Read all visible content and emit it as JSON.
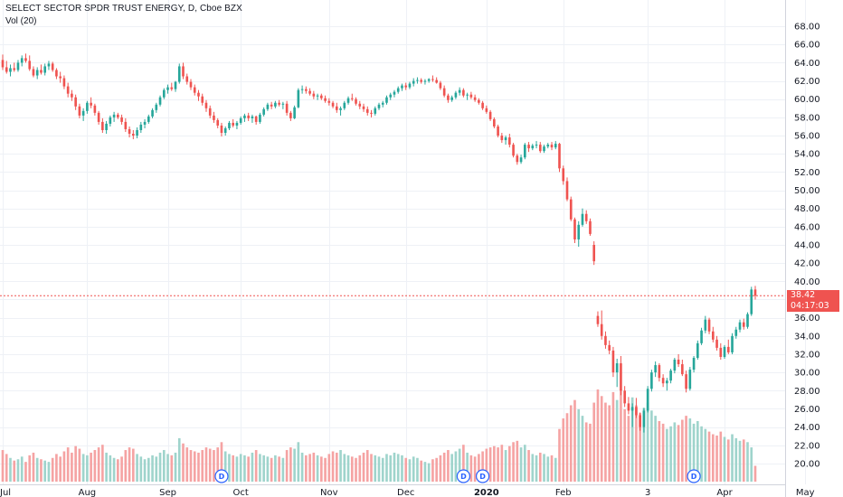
{
  "header": {
    "title": "SELECT SECTOR SPDR TRUST ENERGY, D, Cboe BZX",
    "volume_label": "Vol (20)"
  },
  "price_tag": {
    "last_price": "38.42",
    "countdown": "04:17:03",
    "color": "#ef5350"
  },
  "colors": {
    "up": "#26a69a",
    "down": "#ef5350",
    "up_volume": "#9fd4cc",
    "down_volume": "#f5a3a3",
    "grid": "#eef1f6",
    "axis_text": "#131722",
    "dividend_marker": "#2962ff"
  },
  "chart_data": {
    "type": "candlestick",
    "yaxis": {
      "min": 19.0,
      "max": 69.0,
      "ticks": [
        "68.00",
        "66.00",
        "64.00",
        "62.00",
        "60.00",
        "58.00",
        "56.00",
        "54.00",
        "52.00",
        "50.00",
        "48.00",
        "46.00",
        "44.00",
        "42.00",
        "40.00",
        "38.00",
        "36.00",
        "34.00",
        "32.00",
        "30.00",
        "28.00",
        "26.00",
        "24.00",
        "22.00",
        "20.00"
      ]
    },
    "xaxis": {
      "labels": [
        {
          "text": "Jul",
          "index": 0
        },
        {
          "text": "Aug",
          "index": 22
        },
        {
          "text": "Sep",
          "index": 43
        },
        {
          "text": "Oct",
          "index": 62
        },
        {
          "text": "Nov",
          "index": 85
        },
        {
          "text": "Dec",
          "index": 105
        },
        {
          "text": "2020",
          "index": 126,
          "bold": true
        },
        {
          "text": "Feb",
          "index": 146
        },
        {
          "text": "3",
          "index": 168
        },
        {
          "text": "Apr",
          "index": 188
        },
        {
          "text": "May",
          "index": 209
        }
      ]
    },
    "dividend_markers": [
      {
        "label": "D",
        "index": 57
      },
      {
        "label": "D",
        "index": 120
      },
      {
        "label": "D",
        "index": 125
      },
      {
        "label": "D",
        "index": 180
      }
    ],
    "last_price": 38.42,
    "ohlcv": [
      [
        64.3,
        64.9,
        63.2,
        63.5,
        24
      ],
      [
        63.5,
        64.2,
        62.8,
        63.0,
        21
      ],
      [
        63.0,
        63.8,
        62.5,
        63.4,
        18
      ],
      [
        63.4,
        64.0,
        63.0,
        63.2,
        16
      ],
      [
        63.2,
        64.3,
        63.0,
        64.0,
        17
      ],
      [
        64.0,
        64.8,
        63.6,
        64.5,
        19
      ],
      [
        64.5,
        65.0,
        64.0,
        64.2,
        15
      ],
      [
        64.2,
        64.8,
        63.1,
        63.3,
        20
      ],
      [
        63.3,
        63.6,
        62.4,
        62.6,
        22
      ],
      [
        62.6,
        63.5,
        62.2,
        63.2,
        18
      ],
      [
        63.2,
        63.8,
        62.7,
        62.9,
        17
      ],
      [
        62.9,
        63.9,
        62.6,
        63.6,
        16
      ],
      [
        63.6,
        64.2,
        63.2,
        63.9,
        15
      ],
      [
        63.9,
        64.1,
        63.0,
        63.2,
        18
      ],
      [
        63.2,
        63.4,
        62.2,
        62.5,
        21
      ],
      [
        62.5,
        63.0,
        61.8,
        62.3,
        19
      ],
      [
        62.3,
        62.6,
        61.1,
        61.4,
        23
      ],
      [
        61.4,
        61.8,
        60.2,
        60.6,
        26
      ],
      [
        60.6,
        61.0,
        59.8,
        60.2,
        22
      ],
      [
        60.2,
        60.5,
        58.8,
        59.2,
        27
      ],
      [
        59.2,
        59.5,
        57.9,
        58.2,
        25
      ],
      [
        58.2,
        59.0,
        57.6,
        58.7,
        21
      ],
      [
        58.7,
        59.8,
        58.4,
        59.6,
        20
      ],
      [
        59.6,
        60.2,
        59.0,
        59.3,
        22
      ],
      [
        59.3,
        59.5,
        58.2,
        58.5,
        24
      ],
      [
        58.5,
        58.7,
        57.2,
        57.5,
        26
      ],
      [
        57.5,
        57.9,
        56.3,
        56.6,
        28
      ],
      [
        56.6,
        57.6,
        56.2,
        57.3,
        22
      ],
      [
        57.3,
        58.2,
        57.0,
        58.0,
        20
      ],
      [
        58.0,
        58.6,
        57.5,
        58.3,
        18
      ],
      [
        58.3,
        58.5,
        57.8,
        58.0,
        17
      ],
      [
        58.0,
        58.3,
        57.2,
        57.5,
        19
      ],
      [
        57.5,
        57.9,
        56.4,
        56.7,
        24
      ],
      [
        56.7,
        57.0,
        55.8,
        56.2,
        26
      ],
      [
        56.2,
        56.6,
        55.6,
        56.0,
        25
      ],
      [
        56.0,
        56.9,
        55.7,
        56.6,
        21
      ],
      [
        56.6,
        57.5,
        56.3,
        57.2,
        19
      ],
      [
        57.2,
        57.8,
        56.8,
        57.5,
        17
      ],
      [
        57.5,
        58.3,
        57.3,
        58.1,
        18
      ],
      [
        58.1,
        59.0,
        57.9,
        58.8,
        20
      ],
      [
        58.8,
        59.6,
        58.5,
        59.4,
        19
      ],
      [
        59.4,
        60.4,
        59.2,
        60.2,
        22
      ],
      [
        60.2,
        61.2,
        60.0,
        61.0,
        24
      ],
      [
        61.0,
        61.6,
        60.6,
        61.3,
        21
      ],
      [
        61.3,
        61.8,
        60.9,
        61.1,
        20
      ],
      [
        61.1,
        62.0,
        60.8,
        61.9,
        22
      ],
      [
        61.9,
        63.9,
        61.7,
        63.6,
        33
      ],
      [
        63.6,
        64.0,
        62.2,
        62.5,
        29
      ],
      [
        62.5,
        62.8,
        61.6,
        61.9,
        26
      ],
      [
        61.9,
        62.2,
        61.0,
        61.3,
        24
      ],
      [
        61.3,
        61.6,
        60.4,
        60.7,
        23
      ],
      [
        60.7,
        61.0,
        59.8,
        60.3,
        22
      ],
      [
        60.3,
        60.6,
        59.3,
        59.6,
        24
      ],
      [
        59.6,
        59.9,
        58.6,
        59.0,
        26
      ],
      [
        59.0,
        59.3,
        57.9,
        58.2,
        25
      ],
      [
        58.2,
        58.6,
        57.4,
        57.7,
        24
      ],
      [
        57.7,
        57.9,
        56.8,
        57.1,
        26
      ],
      [
        57.1,
        57.4,
        55.9,
        56.3,
        30
      ],
      [
        56.3,
        57.0,
        56.0,
        56.8,
        23
      ],
      [
        56.8,
        57.6,
        56.6,
        57.4,
        21
      ],
      [
        57.4,
        57.8,
        56.9,
        57.1,
        20
      ],
      [
        57.1,
        57.6,
        56.7,
        57.4,
        19
      ],
      [
        57.4,
        58.1,
        57.2,
        57.9,
        21
      ],
      [
        57.9,
        58.4,
        57.5,
        58.2,
        20
      ],
      [
        58.2,
        58.5,
        57.6,
        57.9,
        19
      ],
      [
        57.9,
        58.3,
        57.4,
        58.1,
        22
      ],
      [
        58.1,
        58.2,
        57.2,
        57.5,
        24
      ],
      [
        57.5,
        58.5,
        57.3,
        58.3,
        21
      ],
      [
        58.3,
        59.1,
        58.1,
        58.9,
        20
      ],
      [
        58.9,
        59.6,
        58.7,
        59.4,
        19
      ],
      [
        59.4,
        59.7,
        58.9,
        59.2,
        18
      ],
      [
        59.2,
        59.8,
        59.0,
        59.6,
        20
      ],
      [
        59.6,
        59.9,
        59.2,
        59.4,
        19
      ],
      [
        59.4,
        59.7,
        58.9,
        59.5,
        18
      ],
      [
        59.5,
        59.8,
        58.2,
        58.5,
        24
      ],
      [
        58.5,
        58.7,
        57.6,
        57.9,
        26
      ],
      [
        57.9,
        59.3,
        57.8,
        59.1,
        25
      ],
      [
        59.1,
        61.2,
        59.0,
        61.0,
        30
      ],
      [
        61.0,
        61.5,
        60.6,
        61.1,
        22
      ],
      [
        61.1,
        61.4,
        60.6,
        60.9,
        20
      ],
      [
        60.9,
        61.2,
        60.4,
        60.6,
        21
      ],
      [
        60.6,
        60.9,
        60.0,
        60.3,
        22
      ],
      [
        60.3,
        60.6,
        59.9,
        60.4,
        20
      ],
      [
        60.4,
        60.6,
        59.9,
        60.1,
        19
      ],
      [
        60.1,
        60.4,
        59.6,
        59.8,
        18
      ],
      [
        59.8,
        60.1,
        59.3,
        59.6,
        21
      ],
      [
        59.6,
        59.8,
        59.0,
        59.2,
        23
      ],
      [
        59.2,
        59.6,
        58.5,
        58.8,
        22
      ],
      [
        58.8,
        59.2,
        58.2,
        59.0,
        24
      ],
      [
        59.0,
        59.8,
        58.8,
        59.6,
        21
      ],
      [
        59.6,
        60.3,
        59.4,
        60.1,
        20
      ],
      [
        60.1,
        60.6,
        59.8,
        60.0,
        19
      ],
      [
        60.0,
        60.2,
        59.3,
        59.5,
        18
      ],
      [
        59.5,
        59.8,
        58.9,
        59.2,
        20
      ],
      [
        59.2,
        59.5,
        58.6,
        58.9,
        22
      ],
      [
        58.9,
        59.2,
        58.2,
        58.5,
        24
      ],
      [
        58.5,
        58.8,
        58.0,
        58.4,
        21
      ],
      [
        58.4,
        59.2,
        58.2,
        59.0,
        20
      ],
      [
        59.0,
        59.6,
        58.8,
        59.4,
        19
      ],
      [
        59.4,
        59.8,
        59.1,
        59.6,
        18
      ],
      [
        59.6,
        60.4,
        59.4,
        60.2,
        21
      ],
      [
        60.2,
        60.7,
        59.9,
        60.5,
        20
      ],
      [
        60.5,
        61.0,
        60.2,
        60.8,
        22
      ],
      [
        60.8,
        61.4,
        60.6,
        61.2,
        21
      ],
      [
        61.2,
        61.7,
        60.9,
        61.5,
        20
      ],
      [
        61.5,
        61.8,
        61.0,
        61.3,
        18
      ],
      [
        61.3,
        61.9,
        61.1,
        61.7,
        17
      ],
      [
        61.7,
        62.3,
        61.4,
        62.0,
        19
      ],
      [
        62.0,
        62.4,
        61.7,
        62.1,
        18
      ],
      [
        62.1,
        62.3,
        61.7,
        61.9,
        16
      ],
      [
        61.9,
        62.2,
        61.6,
        62.0,
        15
      ],
      [
        62.0,
        62.3,
        61.8,
        62.2,
        14
      ],
      [
        62.2,
        62.6,
        61.9,
        62.1,
        17
      ],
      [
        62.1,
        62.4,
        61.7,
        61.8,
        18
      ],
      [
        61.8,
        62.0,
        61.0,
        61.2,
        20
      ],
      [
        61.2,
        61.5,
        60.2,
        60.4,
        22
      ],
      [
        60.4,
        60.6,
        59.6,
        59.9,
        24
      ],
      [
        59.9,
        60.4,
        59.7,
        60.2,
        21
      ],
      [
        60.2,
        60.9,
        60.0,
        60.7,
        23
      ],
      [
        60.7,
        61.3,
        60.4,
        61.0,
        25
      ],
      [
        61.0,
        61.2,
        60.2,
        60.4,
        28
      ],
      [
        60.4,
        60.7,
        59.9,
        60.5,
        22
      ],
      [
        60.5,
        60.8,
        60.0,
        60.2,
        20
      ],
      [
        60.2,
        60.5,
        59.7,
        59.9,
        19
      ],
      [
        59.9,
        60.1,
        59.4,
        59.6,
        21
      ],
      [
        59.6,
        59.8,
        58.8,
        59.0,
        23
      ],
      [
        59.0,
        59.3,
        58.4,
        58.6,
        25
      ],
      [
        58.6,
        58.8,
        57.6,
        57.8,
        26
      ],
      [
        57.8,
        58.0,
        56.8,
        57.0,
        27
      ],
      [
        57.0,
        57.2,
        55.8,
        56.0,
        26
      ],
      [
        56.0,
        56.3,
        55.2,
        55.5,
        28
      ],
      [
        55.5,
        56.0,
        55.0,
        55.8,
        24
      ],
      [
        55.8,
        56.2,
        54.7,
        55.0,
        27
      ],
      [
        55.0,
        55.2,
        53.6,
        53.8,
        30
      ],
      [
        53.8,
        54.0,
        52.8,
        53.1,
        31
      ],
      [
        53.1,
        53.9,
        52.9,
        53.6,
        26
      ],
      [
        53.6,
        55.2,
        53.4,
        55.0,
        28
      ],
      [
        55.0,
        55.3,
        54.2,
        54.6,
        24
      ],
      [
        54.6,
        55.1,
        54.4,
        54.9,
        21
      ],
      [
        54.9,
        55.4,
        54.6,
        55.0,
        20
      ],
      [
        55.0,
        55.3,
        54.1,
        54.3,
        22
      ],
      [
        54.3,
        55.0,
        54.1,
        54.8,
        21
      ],
      [
        54.8,
        55.2,
        54.6,
        55.0,
        19
      ],
      [
        55.0,
        55.3,
        54.4,
        54.7,
        20
      ],
      [
        54.7,
        55.4,
        54.5,
        55.1,
        18
      ],
      [
        55.1,
        55.2,
        52.0,
        52.4,
        40
      ],
      [
        52.4,
        52.7,
        50.6,
        51.0,
        48
      ],
      [
        51.0,
        51.4,
        48.8,
        49.0,
        52
      ],
      [
        49.0,
        49.3,
        46.6,
        46.8,
        58
      ],
      [
        46.8,
        47.0,
        44.2,
        44.6,
        62
      ],
      [
        44.6,
        46.6,
        43.8,
        46.2,
        55
      ],
      [
        46.2,
        48.0,
        46.0,
        47.4,
        50
      ],
      [
        47.4,
        47.8,
        46.3,
        46.6,
        45
      ],
      [
        46.6,
        46.9,
        45.0,
        45.2,
        44
      ],
      [
        44.0,
        44.4,
        41.8,
        42.2,
        60
      ],
      [
        36.2,
        36.7,
        35.0,
        35.3,
        70
      ],
      [
        35.3,
        36.8,
        33.6,
        34.0,
        65
      ],
      [
        34.0,
        34.5,
        32.6,
        33.0,
        60
      ],
      [
        33.0,
        33.5,
        32.0,
        32.4,
        58
      ],
      [
        32.4,
        32.8,
        29.5,
        30.0,
        68
      ],
      [
        30.0,
        31.5,
        28.4,
        31.0,
        62
      ],
      [
        31.0,
        31.8,
        27.5,
        28.0,
        70
      ],
      [
        28.0,
        28.5,
        26.2,
        26.6,
        55
      ],
      [
        26.6,
        27.3,
        25.4,
        25.8,
        50
      ],
      [
        25.8,
        26.6,
        24.0,
        26.2,
        64
      ],
      [
        26.2,
        27.2,
        25.0,
        25.3,
        58
      ],
      [
        25.3,
        25.6,
        23.6,
        24.0,
        52
      ],
      [
        24.0,
        26.1,
        23.4,
        25.8,
        56
      ],
      [
        25.8,
        28.5,
        25.6,
        28.2,
        60
      ],
      [
        28.2,
        30.3,
        27.9,
        30.0,
        54
      ],
      [
        30.0,
        31.2,
        29.5,
        30.8,
        50
      ],
      [
        30.8,
        31.0,
        29.0,
        29.4,
        46
      ],
      [
        29.4,
        29.8,
        28.4,
        28.8,
        44
      ],
      [
        28.8,
        29.4,
        28.0,
        29.1,
        40
      ],
      [
        29.1,
        30.4,
        28.8,
        30.2,
        42
      ],
      [
        30.2,
        31.6,
        29.9,
        31.4,
        45
      ],
      [
        31.4,
        32.0,
        30.6,
        30.9,
        43
      ],
      [
        30.9,
        31.4,
        29.6,
        29.8,
        47
      ],
      [
        29.8,
        30.2,
        27.8,
        28.2,
        50
      ],
      [
        28.2,
        30.6,
        28.0,
        30.3,
        48
      ],
      [
        30.3,
        31.8,
        30.0,
        31.6,
        44
      ],
      [
        31.6,
        33.5,
        31.4,
        33.2,
        46
      ],
      [
        33.2,
        34.9,
        33.0,
        34.6,
        42
      ],
      [
        34.6,
        36.2,
        34.3,
        35.8,
        40
      ],
      [
        35.8,
        36.0,
        34.2,
        34.5,
        38
      ],
      [
        34.5,
        35.0,
        33.3,
        33.6,
        36
      ],
      [
        33.6,
        34.0,
        32.4,
        32.7,
        35
      ],
      [
        32.7,
        33.2,
        31.4,
        31.7,
        38
      ],
      [
        31.7,
        33.0,
        31.5,
        32.8,
        34
      ],
      [
        32.8,
        33.6,
        32.0,
        32.2,
        32
      ],
      [
        32.2,
        34.3,
        32.0,
        34.0,
        36
      ],
      [
        34.0,
        35.0,
        33.7,
        34.7,
        33
      ],
      [
        34.7,
        35.8,
        34.4,
        35.5,
        31
      ],
      [
        35.5,
        35.9,
        34.7,
        35.0,
        32
      ],
      [
        35.0,
        36.6,
        34.8,
        36.4,
        30
      ],
      [
        36.4,
        39.4,
        36.2,
        39.1,
        26
      ],
      [
        39.1,
        39.5,
        38.0,
        38.42,
        12
      ]
    ]
  }
}
